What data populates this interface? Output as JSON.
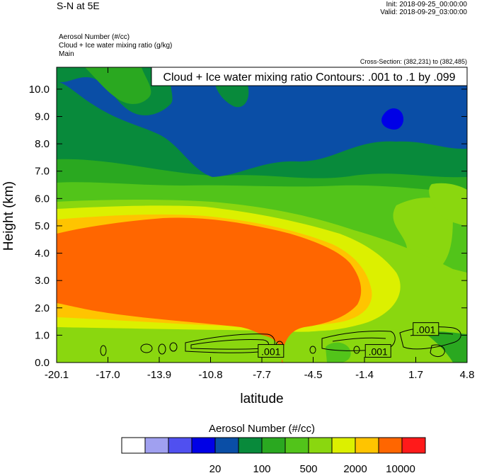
{
  "header": {
    "title": "S-N at 5E",
    "init": "Init: 2018-09-25_00:00:00",
    "valid": "Valid: 2018-09-29_03:00:00",
    "fields": [
      "Aerosol Number   (#/cc)",
      "Cloud + Ice water mixing ratio   (g/kg)",
      "Main"
    ],
    "cross_section": "Cross-Section: (382,231) to (382,485)"
  },
  "chart_data": {
    "type": "heatmap",
    "xlabel": "latitude",
    "ylabel": "Height (km)",
    "x_ticks": [
      "-20.1",
      "-17.0",
      "-13.9",
      "-10.8",
      "-7.7",
      "-4.5",
      "-1.4",
      "1.7",
      "4.8"
    ],
    "y_ticks": [
      "0.0",
      "1.0",
      "2.0",
      "3.0",
      "4.0",
      "5.0",
      "6.0",
      "7.0",
      "8.0",
      "9.0",
      "10.0"
    ],
    "xlim": [
      -20.1,
      4.8
    ],
    "ylim": [
      0.0,
      10.8
    ],
    "contour_title": "Cloud + Ice water mixing ratio Contours: .001 to .1 by .099",
    "contour_labels": [
      {
        "text": ".001",
        "x": -7.1,
        "y": 0.4
      },
      {
        "text": ".001",
        "x": -0.6,
        "y": 0.4
      },
      {
        "text": ".001",
        "x": 2.3,
        "y": 1.2
      }
    ],
    "colorbar": {
      "title": "Aerosol Number  (#/cc)",
      "colors": [
        "#ffffff",
        "#a0a0f0",
        "#5050f0",
        "#0000e6",
        "#0a4ea6",
        "#088a3b",
        "#2aa820",
        "#52c41a",
        "#8ad70f",
        "#dcf000",
        "#ffc400",
        "#ff6600",
        "#ff1a1a"
      ],
      "labels": [
        "20",
        "100",
        "500",
        "2000",
        "10000"
      ],
      "label_positions": [
        4,
        6,
        8,
        10,
        12
      ]
    }
  }
}
